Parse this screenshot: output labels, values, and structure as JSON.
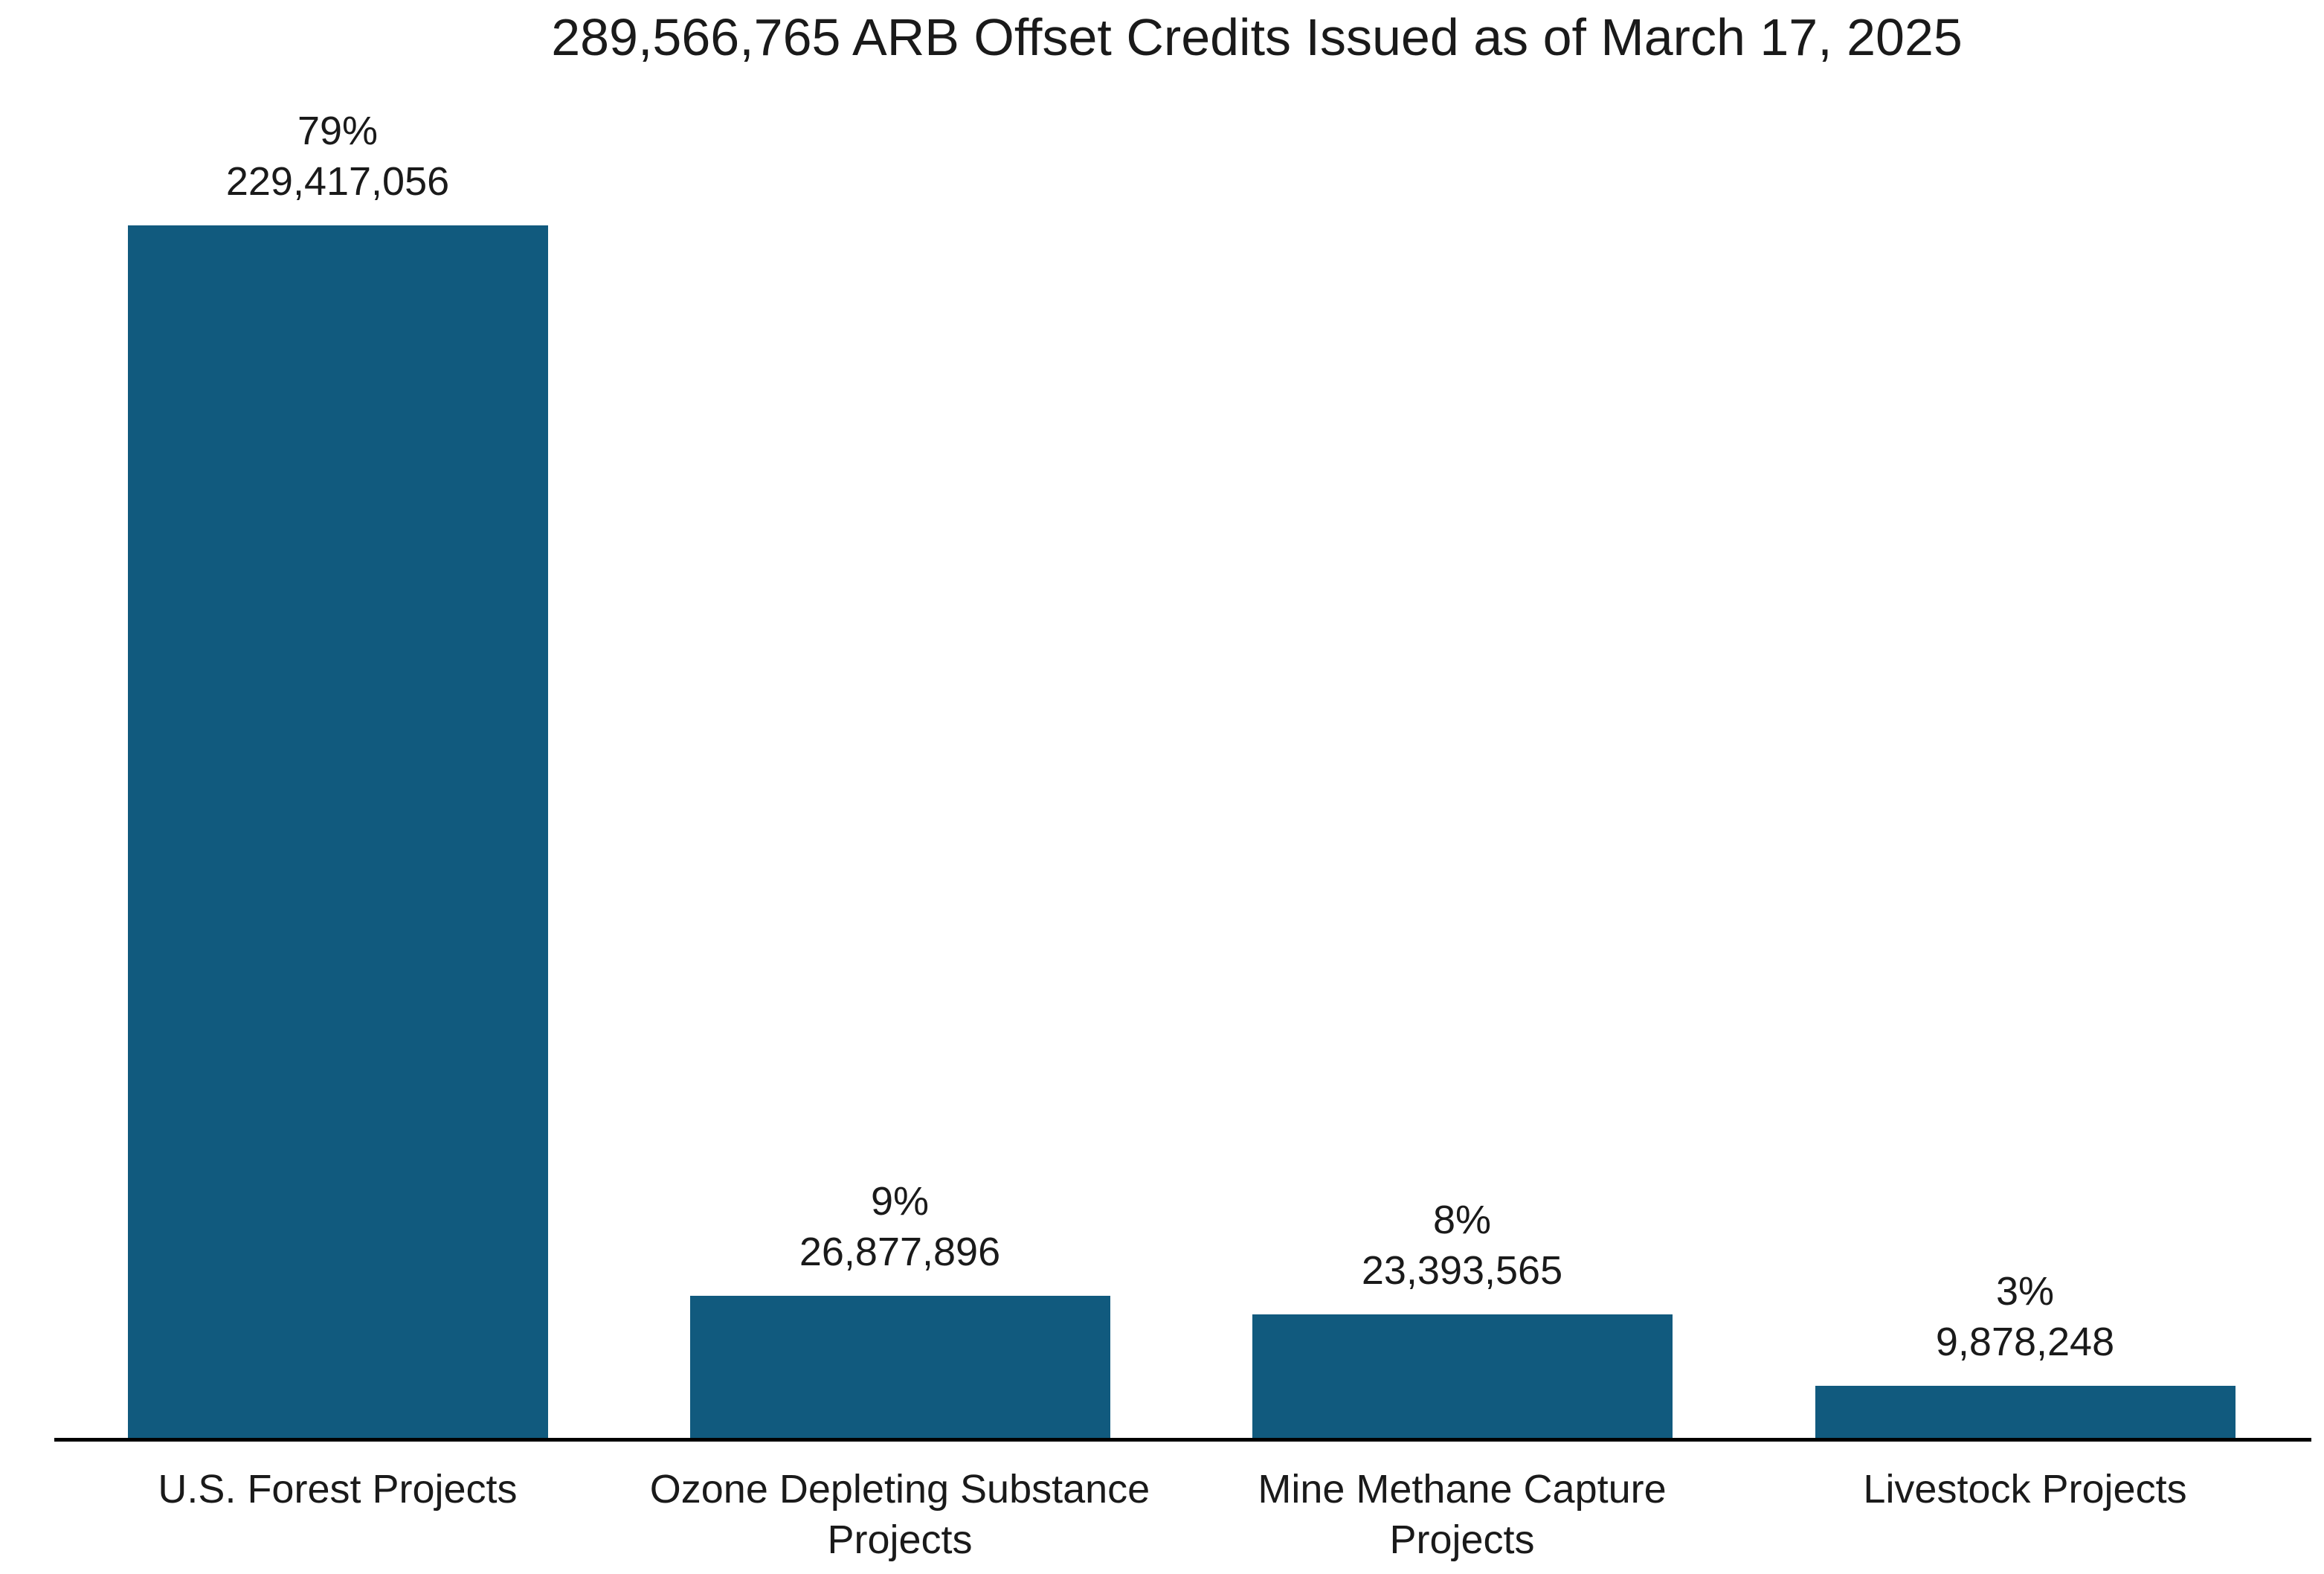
{
  "title": "289,566,765 ARB Offset Credits Issued as of March 17, 2025",
  "colors": {
    "bar": "#115A7E",
    "axis": "#000000",
    "text": "#1A1A1A",
    "background": "#FFFFFF"
  },
  "chart_data": {
    "type": "bar",
    "title": "289,566,765 ARB Offset Credits Issued as of March 17, 2025",
    "total_credits": "289,566,765",
    "as_of_date": "March 17, 2025",
    "categories": [
      "U.S. Forest Projects",
      "Ozone Depleting Substance Projects",
      "Mine Methane Capture Projects",
      "Livestock Projects"
    ],
    "category_display": [
      "U.S. Forest Projects",
      "Ozone Depleting Substance\nProjects",
      "Mine Methane Capture\nProjects",
      "Livestock Projects"
    ],
    "values": [
      229417056,
      26877896,
      23393565,
      9878248
    ],
    "value_labels": [
      "229,417,056",
      "26,877,896",
      "23,393,565",
      "9,878,248"
    ],
    "percent_labels": [
      "79%",
      "9%",
      "8%",
      "3%"
    ],
    "xlabel": "",
    "ylabel": "",
    "ylim": [
      0,
      229417056
    ],
    "grid": false,
    "legend": false,
    "bar_color": "#115A7E"
  }
}
